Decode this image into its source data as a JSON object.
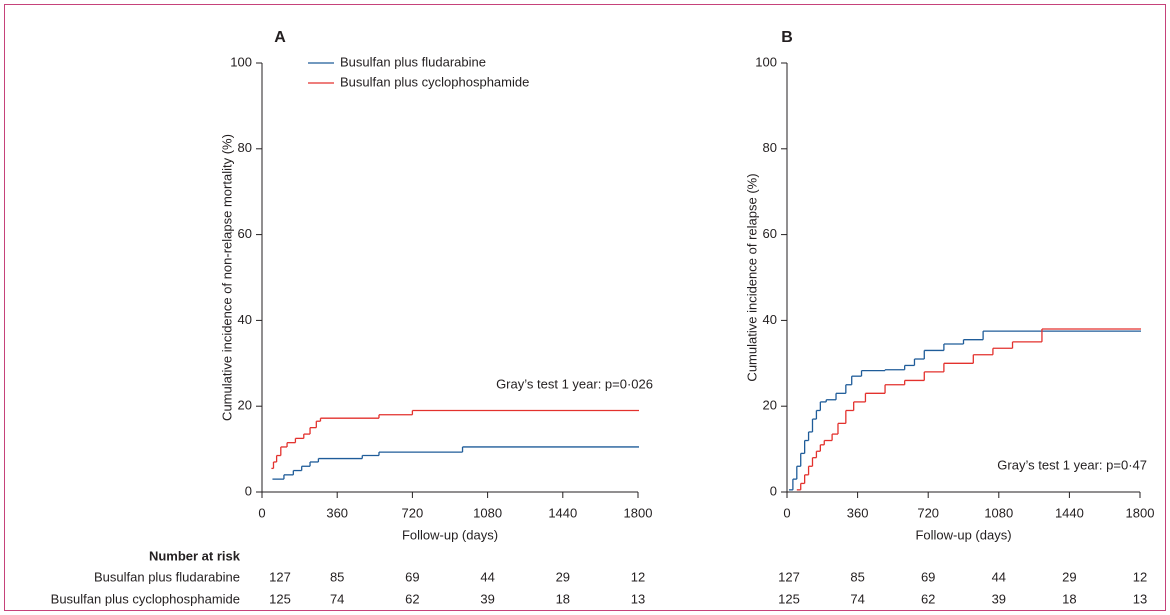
{
  "chart_data": [
    {
      "type": "line",
      "drawstyle": "steps-post",
      "title": "A",
      "x_label": "Follow-up (days)",
      "y_label": "Cumulative incidence of non-relapse mortality (%)",
      "xlim": [
        0,
        1800
      ],
      "ylim": [
        0,
        100
      ],
      "xticks": [
        0,
        360,
        720,
        1080,
        1440,
        1800
      ],
      "yticks": [
        0,
        20,
        40,
        60,
        80,
        100
      ],
      "legend": "upper left",
      "series": [
        {
          "name": "Busulfan plus fludarabine",
          "color": "#1f5c99",
          "x": [
            50,
            105,
            150,
            190,
            230,
            270,
            480,
            560,
            960,
            1800
          ],
          "values": [
            3,
            4,
            5,
            6,
            7,
            7.8,
            8.5,
            9.3,
            10.5,
            10.5
          ]
        },
        {
          "name": "Busulfan plus cyclophosphamide",
          "color": "#e3312d",
          "x": [
            45,
            55,
            70,
            90,
            120,
            160,
            200,
            230,
            260,
            280,
            560,
            720,
            1800
          ],
          "values": [
            5.5,
            7,
            8.5,
            10.5,
            11.5,
            12.5,
            13.5,
            15,
            16.5,
            17.2,
            18,
            19,
            19
          ]
        }
      ],
      "annotation": "Gray’s test 1 year: p=0·026",
      "at_risk": {
        "title": "Number at risk",
        "rows": [
          [
            127,
            85,
            69,
            44,
            29,
            12
          ],
          [
            125,
            74,
            62,
            39,
            18,
            13
          ]
        ]
      }
    },
    {
      "type": "line",
      "drawstyle": "steps-post",
      "title": "B",
      "x_label": "Follow-up (days)",
      "y_label": "Cumulative incidence of relapse (%)",
      "xlim": [
        0,
        1800
      ],
      "ylim": [
        0,
        100
      ],
      "xticks": [
        0,
        360,
        720,
        1080,
        1440,
        1800
      ],
      "yticks": [
        0,
        20,
        40,
        60,
        80,
        100
      ],
      "series": [
        {
          "color": "#1f5c99",
          "x": [
            10,
            30,
            50,
            70,
            90,
            110,
            130,
            150,
            170,
            200,
            250,
            300,
            330,
            380,
            500,
            600,
            650,
            700,
            800,
            900,
            1000,
            1800
          ],
          "values": [
            0.5,
            3,
            6,
            9,
            12,
            14,
            17,
            19,
            21,
            21.5,
            23,
            25,
            27,
            28.3,
            28.5,
            29.5,
            31,
            33,
            34.5,
            35.5,
            37.5,
            37.5
          ]
        },
        {
          "color": "#e3312d",
          "x": [
            50,
            70,
            90,
            110,
            130,
            150,
            170,
            190,
            230,
            260,
            300,
            340,
            400,
            500,
            600,
            700,
            800,
            950,
            1050,
            1150,
            1300,
            1800
          ],
          "values": [
            0.5,
            2,
            4,
            6,
            8,
            9.5,
            11,
            12,
            13.5,
            16,
            19,
            21,
            23,
            25,
            26,
            28,
            30,
            32,
            33.5,
            35,
            38,
            38
          ]
        }
      ],
      "annotation": "Gray’s test 1 year: p=0·47",
      "at_risk": {
        "rows": [
          [
            127,
            85,
            69,
            44,
            29,
            12
          ],
          [
            125,
            74,
            62,
            39,
            18,
            13
          ]
        ]
      }
    }
  ]
}
